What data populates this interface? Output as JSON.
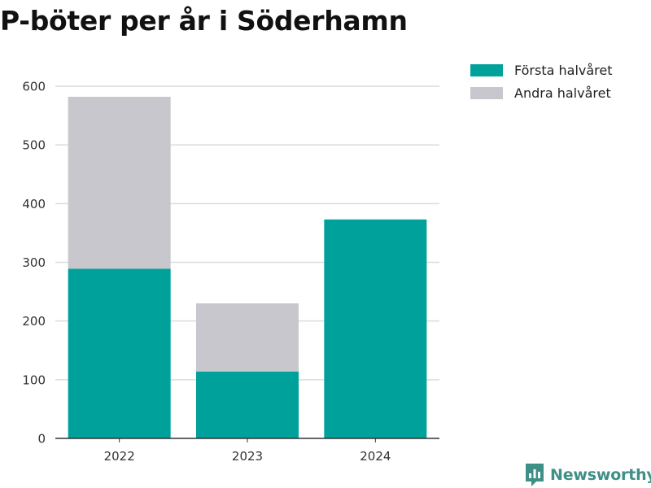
{
  "title": "P-böter per år i Söderhamn",
  "brand": {
    "name": "Newsworthy",
    "icon": "newsworthy-logo-icon",
    "color": "#3d8f87"
  },
  "chart_data": {
    "type": "bar",
    "stacked": true,
    "categories": [
      "2022",
      "2023",
      "2024"
    ],
    "series": [
      {
        "name": "Första halvåret",
        "values": [
          289,
          114,
          373
        ],
        "color": "#00a19a"
      },
      {
        "name": "Andra halvåret",
        "values": [
          293,
          116,
          0
        ],
        "color": "#c8c7ce"
      }
    ],
    "ylim": [
      0,
      600
    ],
    "yticks": [
      0,
      100,
      200,
      300,
      400,
      500,
      600
    ],
    "xlabel": "",
    "ylabel": "",
    "grid": true,
    "legend": "top-right"
  }
}
